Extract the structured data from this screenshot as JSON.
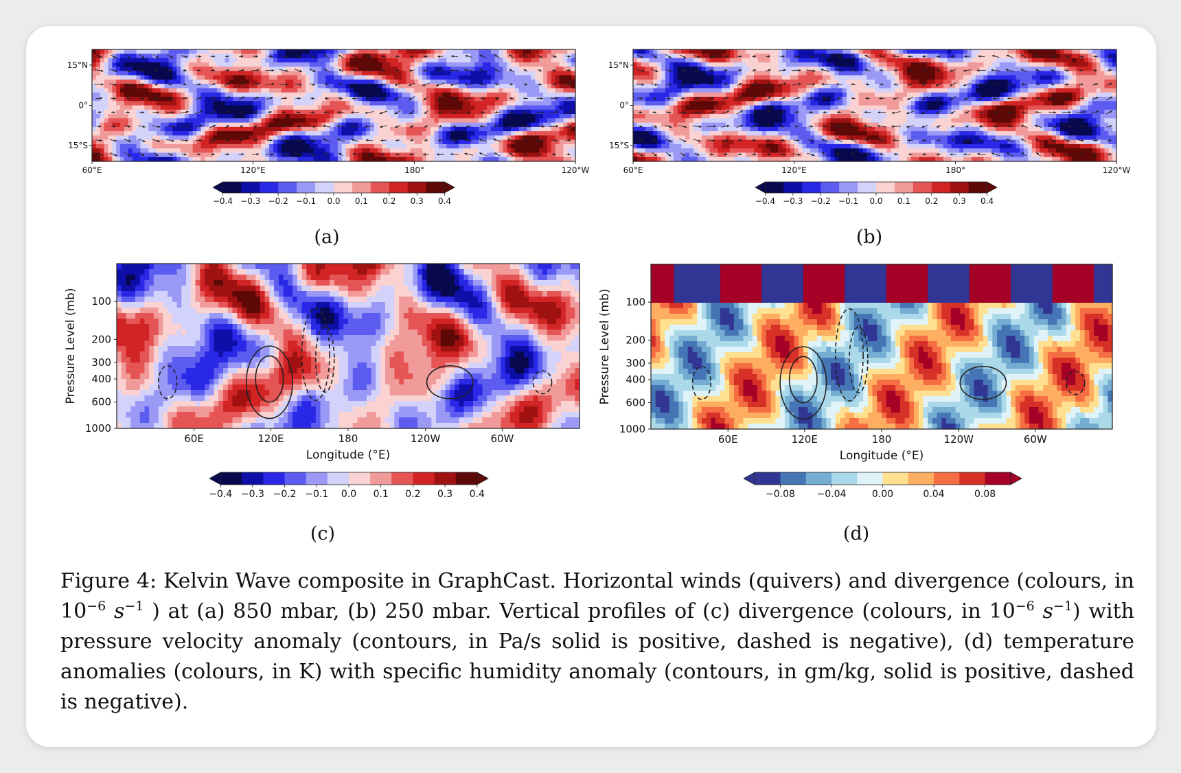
{
  "figure_number": "Figure 4:",
  "caption": {
    "lead": "Kelvin Wave composite in GraphCast. Horizontal winds (quivers) and divergence (colours, in 10",
    "exp1": "−6",
    "s1": "s",
    "exp2": "−1",
    "mid": ") at (a) 850 mbar, (b) 250 mbar.  Vertical profiles of (c) divergence (colours, in 10",
    "exp3": "−6",
    "s2": "s",
    "exp4": "−1",
    "tail": ") with pressure velocity anomaly (contours, in Pa/s solid is positive, dashed is negative), (d) temperature anomalies (colours, in K) with specific humidity anomaly (contours, in gm/kg, solid is positive, dashed is negative)."
  },
  "sublabels": [
    "(a)",
    "(b)",
    "(c)",
    "(d)"
  ],
  "colors": {
    "diverging": [
      "#08084f",
      "#0e0ea8",
      "#2828e6",
      "#5c5cf0",
      "#9a9af6",
      "#d2d2fb",
      "#fbd2d2",
      "#f19a9a",
      "#e55555",
      "#d22424",
      "#a01212",
      "#5e0808"
    ],
    "rdylbu": [
      "#313695",
      "#4575b4",
      "#74add1",
      "#abd9e9",
      "#e0f3f8",
      "#fee090",
      "#fdae61",
      "#f46d43",
      "#d73027",
      "#a50026"
    ]
  },
  "chart_data": [
    {
      "panel": "a",
      "type": "heatmap",
      "xticks": [
        "60°E",
        "120°E",
        "180°",
        "120°W"
      ],
      "yticks": [
        "15°N",
        "0°",
        "15°S"
      ],
      "colorbar_ticks": [
        "−0.4",
        "−0.3",
        "−0.2",
        "−0.1",
        "0.0",
        "0.1",
        "0.2",
        "0.3",
        "0.4"
      ],
      "clim": [
        -0.4,
        0.4
      ],
      "quivers": true
    },
    {
      "panel": "b",
      "type": "heatmap",
      "xticks": [
        "60°E",
        "120°E",
        "180°",
        "120°W"
      ],
      "yticks": [
        "15°N",
        "0°",
        "15°S"
      ],
      "colorbar_ticks": [
        "−0.4",
        "−0.3",
        "−0.2",
        "−0.1",
        "0.0",
        "0.1",
        "0.2",
        "0.3",
        "0.4"
      ],
      "clim": [
        -0.4,
        0.4
      ],
      "quivers": true
    },
    {
      "panel": "c",
      "type": "heatmap",
      "xlabel": "Longitude (°E)",
      "ylabel": "Pressure Level (mb)",
      "xticks": [
        "60E",
        "120E",
        "180",
        "120W",
        "60W"
      ],
      "yticks": [
        "100",
        "200",
        "300",
        "400",
        "600",
        "1000"
      ],
      "colorbar_ticks": [
        "−0.4",
        "−0.3",
        "−0.2",
        "−0.1",
        "0.0",
        "0.1",
        "0.2",
        "0.3",
        "0.4"
      ],
      "clim": [
        -0.4,
        0.4
      ],
      "contours": "solid positive, dashed negative"
    },
    {
      "panel": "d",
      "type": "heatmap",
      "xlabel": "Longitude (°E)",
      "ylabel": "Pressure Level (mb)",
      "xticks": [
        "60E",
        "120E",
        "180",
        "120W",
        "60W"
      ],
      "yticks": [
        "100",
        "200",
        "300",
        "400",
        "600",
        "1000"
      ],
      "colorbar_ticks": [
        "−0.08",
        "−0.04",
        "0.00",
        "0.04",
        "0.08"
      ],
      "clim": [
        -0.1,
        0.1
      ],
      "contours": "solid positive, dashed negative"
    }
  ]
}
